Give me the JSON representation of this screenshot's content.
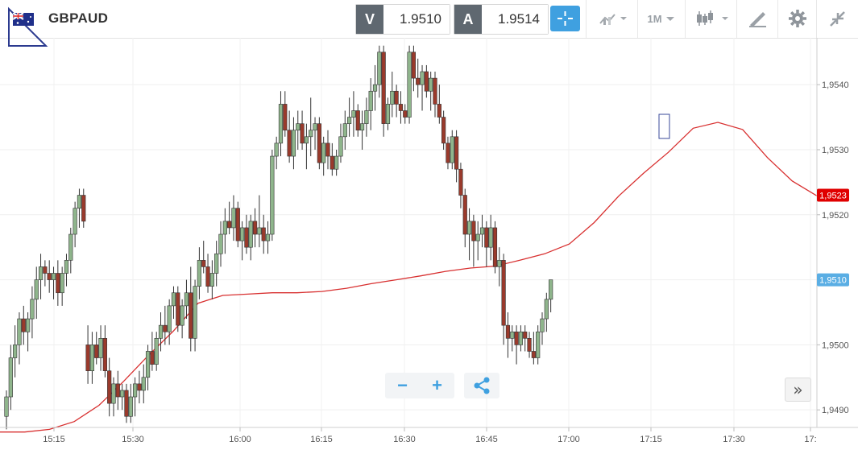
{
  "toolbar": {
    "symbol": "GBPAUD",
    "flag_icon": "gb-au-flag-icon",
    "bid": {
      "tag": "V",
      "value": "1.9510"
    },
    "ask": {
      "tag": "A",
      "value": "1.9514"
    },
    "crosshair_icon": "crosshair-icon",
    "indicators_icon": "indicators-icon",
    "timeframe_label": "1M",
    "chart_type_icon": "candlestick-icon",
    "drawing_icon": "draw-tools-icon",
    "settings_icon": "gear-icon",
    "collapse_icon": "collapse-icon",
    "accent_color": "#3fa0e0"
  },
  "controls": {
    "zoom_out_label": "−",
    "zoom_in_label": "+",
    "share_icon": "share-icon",
    "scroll_label": "»"
  },
  "chart_data": {
    "type": "candlestick",
    "symbol": "GBPAUD",
    "timeframe": "1M",
    "x_tick_labels": [
      "15:15",
      "15:30",
      "16:00",
      "16:15",
      "16:30",
      "16:45",
      "17:00",
      "17:15",
      "17:30",
      "17:"
    ],
    "y_tick_labels": [
      "1,9540",
      "1,9530",
      "1,9520",
      "1,9510",
      "1,9500",
      "1,9490"
    ],
    "y_tick_values": [
      1.954,
      1.953,
      1.952,
      1.951,
      1.95,
      1.949
    ],
    "ylim": [
      1.94873,
      1.95472
    ],
    "grid": true,
    "colors": {
      "up": "#8fb58c",
      "down": "#9a3a2c",
      "ma": "#d83030",
      "ma_tag": "#e00000",
      "price_tag": "#5aaee4"
    },
    "current_price": {
      "label": "1,9510",
      "value": 1.951
    },
    "moving_average": {
      "label": "1,9523",
      "value": 1.9523,
      "values": [
        1.94866,
        1.94866,
        1.9487,
        1.94882,
        1.94907,
        1.94944,
        1.94984,
        1.95021,
        1.95064,
        1.95076,
        1.95078,
        1.9508,
        1.9508,
        1.95082,
        1.95087,
        1.95094,
        1.951,
        1.95106,
        1.95113,
        1.95118,
        1.95121,
        1.9513,
        1.9514,
        1.95155,
        1.95188,
        1.95229,
        1.95264,
        1.95296,
        1.95333,
        1.95342,
        1.95331,
        1.95288,
        1.95252,
        1.95229
      ]
    },
    "candles": [
      [
        1.9489,
        1.9493,
        1.9487,
        1.9492
      ],
      [
        1.9492,
        1.95,
        1.949,
        1.9498
      ],
      [
        1.9498,
        1.9503,
        1.9495,
        1.95
      ],
      [
        1.95,
        1.9505,
        1.9497,
        1.9504
      ],
      [
        1.9504,
        1.9506,
        1.95,
        1.9502
      ],
      [
        1.9502,
        1.9505,
        1.9499,
        1.9504
      ],
      [
        1.9504,
        1.9509,
        1.9501,
        1.9507
      ],
      [
        1.9507,
        1.9512,
        1.9504,
        1.951
      ],
      [
        1.951,
        1.9514,
        1.9507,
        1.9512
      ],
      [
        1.9512,
        1.9513,
        1.9509,
        1.9511
      ],
      [
        1.9511,
        1.9513,
        1.9508,
        1.951
      ],
      [
        1.951,
        1.9512,
        1.9507,
        1.9511
      ],
      [
        1.9511,
        1.9513,
        1.9506,
        1.9508
      ],
      [
        1.9508,
        1.9512,
        1.9506,
        1.9511
      ],
      [
        1.9511,
        1.9514,
        1.9509,
        1.9513
      ],
      [
        1.9513,
        1.9518,
        1.9511,
        1.9517
      ],
      [
        1.9517,
        1.9522,
        1.9515,
        1.9521
      ],
      [
        1.9521,
        1.9524,
        1.9518,
        1.9523
      ],
      [
        1.9523,
        1.9524,
        1.9518,
        1.9519
      ],
      [
        1.95,
        1.9503,
        1.9494,
        1.9496
      ],
      [
        1.9496,
        1.9502,
        1.9494,
        1.95
      ],
      [
        1.95,
        1.9502,
        1.9497,
        1.9498
      ],
      [
        1.9498,
        1.9503,
        1.9496,
        1.9501
      ],
      [
        1.9501,
        1.9503,
        1.9495,
        1.9496
      ],
      [
        1.9496,
        1.9498,
        1.9489,
        1.9491
      ],
      [
        1.9491,
        1.9495,
        1.9489,
        1.9494
      ],
      [
        1.9494,
        1.9496,
        1.949,
        1.9492
      ],
      [
        1.9492,
        1.9494,
        1.949,
        1.9493
      ],
      [
        1.9493,
        1.9494,
        1.9488,
        1.9489
      ],
      [
        1.9489,
        1.9494,
        1.9488,
        1.9492
      ],
      [
        1.9492,
        1.9495,
        1.9489,
        1.9494
      ],
      [
        1.9494,
        1.9496,
        1.9491,
        1.9493
      ],
      [
        1.9493,
        1.9497,
        1.9491,
        1.9495
      ],
      [
        1.9495,
        1.95,
        1.9493,
        1.9499
      ],
      [
        1.9499,
        1.9502,
        1.9496,
        1.9497
      ],
      [
        1.9497,
        1.9502,
        1.9496,
        1.9501
      ],
      [
        1.9501,
        1.9505,
        1.9499,
        1.9503
      ],
      [
        1.9503,
        1.9506,
        1.95,
        1.9502
      ],
      [
        1.9502,
        1.9507,
        1.95,
        1.9506
      ],
      [
        1.9506,
        1.9509,
        1.9504,
        1.9508
      ],
      [
        1.9508,
        1.9509,
        1.9502,
        1.9503
      ],
      [
        1.9503,
        1.9507,
        1.9501,
        1.9506
      ],
      [
        1.9506,
        1.951,
        1.9504,
        1.9508
      ],
      [
        1.9508,
        1.9512,
        1.9499,
        1.9501
      ],
      [
        1.9501,
        1.951,
        1.9499,
        1.9509
      ],
      [
        1.9509,
        1.9515,
        1.9507,
        1.9513
      ],
      [
        1.9513,
        1.9516,
        1.9511,
        1.9512
      ],
      [
        1.9512,
        1.9514,
        1.9508,
        1.9509
      ],
      [
        1.9509,
        1.9513,
        1.9507,
        1.9511
      ],
      [
        1.9511,
        1.9516,
        1.9509,
        1.9514
      ],
      [
        1.9514,
        1.9519,
        1.9512,
        1.9517
      ],
      [
        1.9517,
        1.9521,
        1.9514,
        1.9519
      ],
      [
        1.9519,
        1.9522,
        1.9517,
        1.9518
      ],
      [
        1.9518,
        1.9523,
        1.9516,
        1.9521
      ],
      [
        1.9521,
        1.9522,
        1.9515,
        1.9516
      ],
      [
        1.9516,
        1.9519,
        1.9513,
        1.9518
      ],
      [
        1.9518,
        1.952,
        1.9514,
        1.9515
      ],
      [
        1.9515,
        1.952,
        1.9513,
        1.9519
      ],
      [
        1.9519,
        1.9521,
        1.9515,
        1.9517
      ],
      [
        1.9517,
        1.9523,
        1.9515,
        1.9518
      ],
      [
        1.9518,
        1.952,
        1.9514,
        1.9516
      ],
      [
        1.9516,
        1.9519,
        1.9514,
        1.9517
      ],
      [
        1.9517,
        1.953,
        1.9516,
        1.9529
      ],
      [
        1.9529,
        1.9532,
        1.9527,
        1.9531
      ],
      [
        1.9531,
        1.9539,
        1.9529,
        1.9537
      ],
      [
        1.9537,
        1.9539,
        1.9532,
        1.9533
      ],
      [
        1.9533,
        1.9536,
        1.9528,
        1.9529
      ],
      [
        1.9529,
        1.9535,
        1.9527,
        1.9533
      ],
      [
        1.9533,
        1.9536,
        1.953,
        1.9534
      ],
      [
        1.9534,
        1.9536,
        1.953,
        1.9531
      ],
      [
        1.9531,
        1.9534,
        1.9527,
        1.9532
      ],
      [
        1.9532,
        1.9538,
        1.9529,
        1.9533
      ],
      [
        1.9533,
        1.9535,
        1.953,
        1.9534
      ],
      [
        1.9534,
        1.9535,
        1.9527,
        1.9528
      ],
      [
        1.9528,
        1.9532,
        1.9526,
        1.9531
      ],
      [
        1.9531,
        1.9533,
        1.9527,
        1.9529
      ],
      [
        1.9529,
        1.9531,
        1.9526,
        1.9527
      ],
      [
        1.9527,
        1.953,
        1.9526,
        1.9529
      ],
      [
        1.9529,
        1.9534,
        1.9528,
        1.9532
      ],
      [
        1.9532,
        1.9536,
        1.953,
        1.9534
      ],
      [
        1.9534,
        1.9538,
        1.9532,
        1.9535
      ],
      [
        1.9535,
        1.9539,
        1.9532,
        1.9536
      ],
      [
        1.9536,
        1.9537,
        1.9532,
        1.9533
      ],
      [
        1.9533,
        1.9536,
        1.953,
        1.9534
      ],
      [
        1.9534,
        1.9538,
        1.9532,
        1.9536
      ],
      [
        1.9536,
        1.9541,
        1.9533,
        1.9539
      ],
      [
        1.9539,
        1.9543,
        1.9536,
        1.954
      ],
      [
        1.954,
        1.9546,
        1.9538,
        1.9545
      ],
      [
        1.9545,
        1.9546,
        1.9532,
        1.9534
      ],
      [
        1.9534,
        1.9538,
        1.9533,
        1.9537
      ],
      [
        1.9537,
        1.9542,
        1.9535,
        1.9539
      ],
      [
        1.9539,
        1.954,
        1.9535,
        1.9537
      ],
      [
        1.9537,
        1.9539,
        1.9534,
        1.9536
      ],
      [
        1.9536,
        1.9537,
        1.9534,
        1.9535
      ],
      [
        1.9535,
        1.9546,
        1.9534,
        1.9545
      ],
      [
        1.9545,
        1.9546,
        1.9539,
        1.9541
      ],
      [
        1.9541,
        1.9544,
        1.9538,
        1.954
      ],
      [
        1.954,
        1.9543,
        1.9536,
        1.9542
      ],
      [
        1.9542,
        1.9543,
        1.9538,
        1.9539
      ],
      [
        1.9539,
        1.9542,
        1.9536,
        1.9541
      ],
      [
        1.9541,
        1.9542,
        1.9535,
        1.9537
      ],
      [
        1.9537,
        1.954,
        1.9534,
        1.9535
      ],
      [
        1.9535,
        1.9536,
        1.953,
        1.9531
      ],
      [
        1.9531,
        1.9532,
        1.9527,
        1.9528
      ],
      [
        1.9528,
        1.9533,
        1.9527,
        1.9532
      ],
      [
        1.9532,
        1.9533,
        1.9525,
        1.9527
      ],
      [
        1.9527,
        1.9528,
        1.9521,
        1.9523
      ],
      [
        1.9523,
        1.9524,
        1.9515,
        1.9517
      ],
      [
        1.9517,
        1.9521,
        1.9513,
        1.9519
      ],
      [
        1.9519,
        1.952,
        1.9512,
        1.9516
      ],
      [
        1.9516,
        1.9519,
        1.9513,
        1.9517
      ],
      [
        1.9517,
        1.952,
        1.9515,
        1.9518
      ],
      [
        1.9518,
        1.9519,
        1.9512,
        1.9515
      ],
      [
        1.9515,
        1.952,
        1.9513,
        1.9518
      ],
      [
        1.9518,
        1.9519,
        1.9511,
        1.9512
      ],
      [
        1.9512,
        1.9515,
        1.9509,
        1.9513
      ],
      [
        1.9513,
        1.9514,
        1.95,
        1.9503
      ],
      [
        1.9503,
        1.9505,
        1.9498,
        1.9501
      ],
      [
        1.9501,
        1.9503,
        1.9499,
        1.9502
      ],
      [
        1.9502,
        1.9503,
        1.9497,
        1.95
      ],
      [
        1.95,
        1.9503,
        1.9499,
        1.9502
      ],
      [
        1.9502,
        1.9503,
        1.9499,
        1.9501
      ],
      [
        1.9501,
        1.9502,
        1.9498,
        1.9499
      ],
      [
        1.9499,
        1.9502,
        1.9497,
        1.9498
      ],
      [
        1.9498,
        1.9503,
        1.9497,
        1.9502
      ],
      [
        1.9502,
        1.9505,
        1.95,
        1.9504
      ],
      [
        1.9504,
        1.9508,
        1.9502,
        1.9507
      ],
      [
        1.9507,
        1.951,
        1.9505,
        1.951
      ]
    ]
  }
}
